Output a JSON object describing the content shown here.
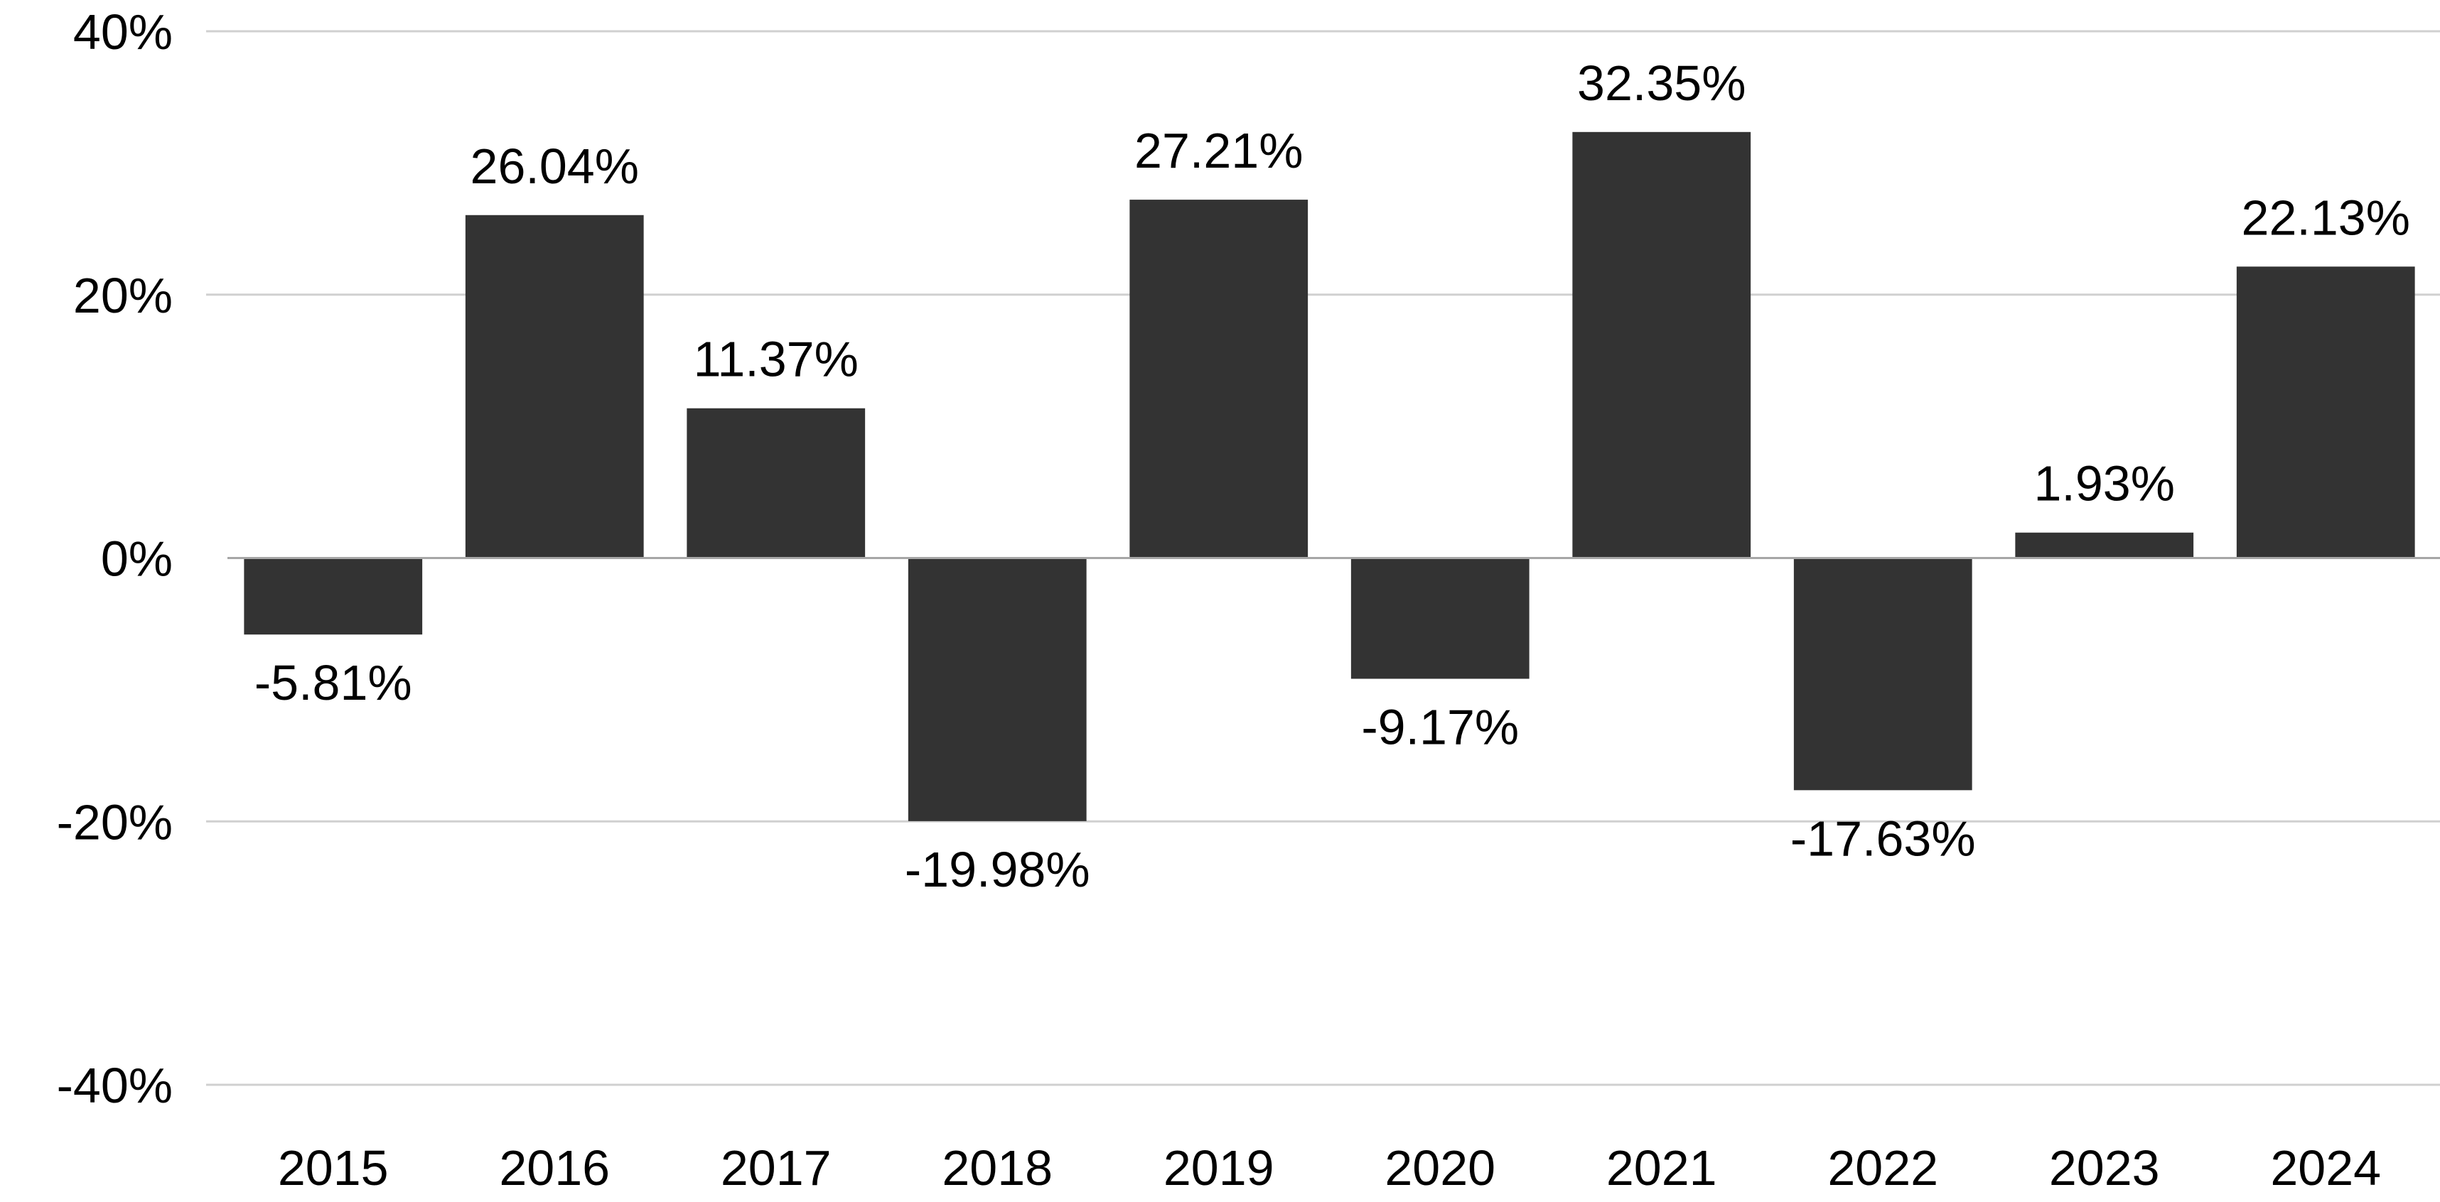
{
  "chart_data": {
    "type": "bar",
    "title": "",
    "xlabel": "",
    "ylabel": "",
    "categories": [
      "2015",
      "2016",
      "2017",
      "2018",
      "2019",
      "2020",
      "2021",
      "2022",
      "2023",
      "2024"
    ],
    "values": [
      -5.81,
      26.04,
      11.37,
      -19.98,
      27.21,
      -9.17,
      32.35,
      -17.63,
      1.93,
      22.13
    ],
    "data_labels": [
      "-5.81%",
      "26.04%",
      "11.37%",
      "-19.98%",
      "27.21%",
      "-9.17%",
      "32.35%",
      "-17.63%",
      "1.93%",
      "22.13%"
    ],
    "ylim": [
      -40,
      40
    ],
    "yticks": [
      40,
      20,
      0,
      -20,
      -40
    ],
    "ytick_labels": [
      "40%",
      "20%",
      "0%",
      "-20%",
      "-40%"
    ],
    "grid": true,
    "legend": "none",
    "bar_color": "#333333",
    "grid_color": "#d0d0d0"
  }
}
